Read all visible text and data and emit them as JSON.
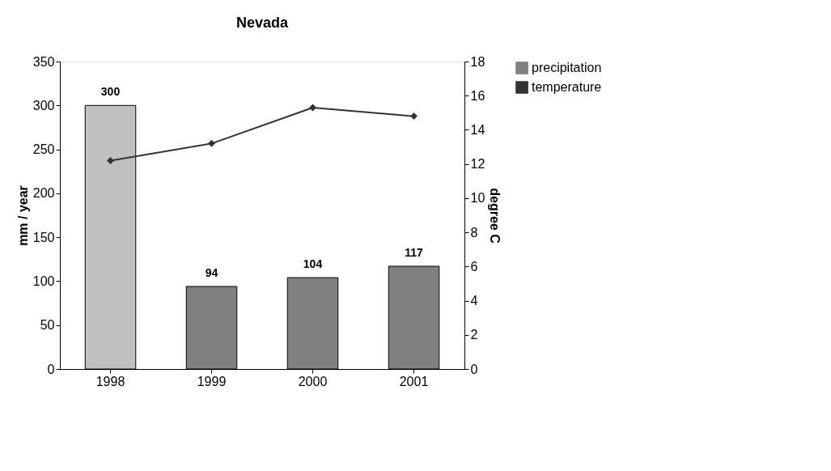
{
  "chart_data": {
    "type": "bar",
    "title": "Nevada",
    "ylabel": "mm / year",
    "y2label": "degree C",
    "categories": [
      "1998",
      "1999",
      "2000",
      "2001"
    ],
    "series": [
      {
        "name": "precipitation",
        "color": "#808080",
        "colors": [
          "#c0c0c0",
          "#808080",
          "#808080",
          "#808080"
        ],
        "values": [
          300,
          94,
          104,
          117
        ],
        "data_labels": true
      },
      {
        "name": "temperature",
        "type": "line",
        "axis": "y2",
        "color": "#333333",
        "marker": "diamond",
        "line_style": "solid",
        "values": [
          12.2,
          13.2,
          15.3,
          14.8
        ]
      }
    ],
    "ylim": [
      0,
      350
    ],
    "yticks": [
      0,
      50,
      100,
      150,
      200,
      250,
      300,
      350
    ],
    "y2lim": [
      0,
      18
    ],
    "y2ticks": [
      0,
      2,
      4,
      6,
      8,
      10,
      12,
      14,
      16,
      18
    ],
    "grid": false,
    "legend": "right"
  }
}
